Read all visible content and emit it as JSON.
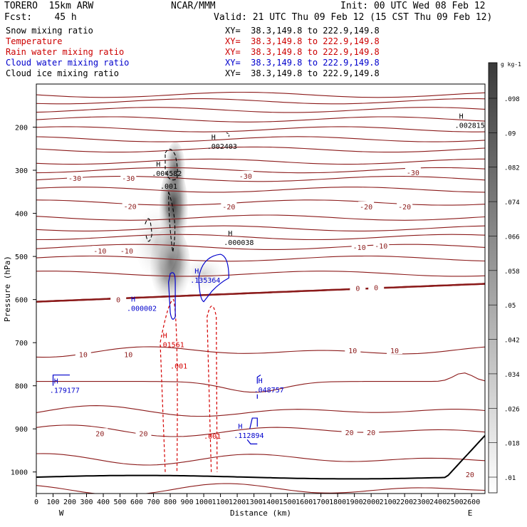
{
  "header": {
    "model": "TORERO  15km ARW",
    "center": "NCAR/MMM",
    "init": "Init: 00 UTC Wed 08 Feb 12",
    "fcst": "Fcst:    45 h",
    "valid": "Valid: 21 UTC Thu 09 Feb 12 (15 CST Thu 09 Feb 12)"
  },
  "fields": [
    {
      "name": "Snow mixing ratio",
      "xy": "XY=  38.3,149.8 to 222.9,149.8",
      "color": "#000000"
    },
    {
      "name": "Temperature",
      "xy": "XY=  38.3,149.8 to 222.9,149.8",
      "color": "#cc0000"
    },
    {
      "name": "Rain water mixing ratio",
      "xy": "XY=  38.3,149.8 to 222.9,149.8",
      "color": "#cc0000"
    },
    {
      "name": "Cloud water mixing ratio",
      "xy": "XY=  38.3,149.8 to 222.9,149.8",
      "color": "#0000cc"
    },
    {
      "name": "Cloud ice mixing ratio",
      "xy": "XY=  38.3,149.8 to 222.9,149.8",
      "color": "#000000"
    }
  ],
  "colors": {
    "isotherm": "#8b1a1a",
    "rain": "#d40000",
    "cloud": "#0000cc",
    "ice": "#000000"
  },
  "chart_data": {
    "type": "cross-section contour",
    "xlabel": "Distance (km)",
    "ylabel": "Pressure (hPa)",
    "xlim": [
      0,
      2680
    ],
    "ylim": [
      1050,
      100
    ],
    "xticks": [
      0,
      100,
      200,
      300,
      400,
      500,
      600,
      700,
      800,
      900,
      1000,
      1100,
      1200,
      1300,
      1400,
      1500,
      1600,
      1700,
      1800,
      1900,
      2000,
      2100,
      2200,
      2300,
      2400,
      2500,
      2600
    ],
    "yticks": [
      200,
      300,
      400,
      500,
      600,
      700,
      800,
      900,
      1000
    ],
    "west_label": "W",
    "east_label": "E",
    "colorbar": {
      "unit": "g kg-1",
      "labels": [
        ".098",
        ".09",
        ".082",
        ".074",
        ".066",
        ".058",
        ".05",
        ".042",
        ".034",
        ".026",
        ".018",
        ".01"
      ]
    },
    "isotherm_labels": [
      {
        "x": 230,
        "p": 318,
        "text": "-30"
      },
      {
        "x": 550,
        "p": 318,
        "text": "-30"
      },
      {
        "x": 1250,
        "p": 313,
        "text": "-30"
      },
      {
        "x": 2250,
        "p": 305,
        "text": "-30"
      },
      {
        "x": 560,
        "p": 383,
        "text": "-20"
      },
      {
        "x": 1150,
        "p": 384,
        "text": "-20"
      },
      {
        "x": 1970,
        "p": 384,
        "text": "-20"
      },
      {
        "x": 2200,
        "p": 384,
        "text": "-20"
      },
      {
        "x": 380,
        "p": 487,
        "text": "-10"
      },
      {
        "x": 540,
        "p": 487,
        "text": "-10"
      },
      {
        "x": 1930,
        "p": 478,
        "text": "-10"
      },
      {
        "x": 2060,
        "p": 475,
        "text": "-10"
      },
      {
        "x": 490,
        "p": 600,
        "text": "0"
      },
      {
        "x": 1920,
        "p": 573,
        "text": "0"
      },
      {
        "x": 2030,
        "p": 572,
        "text": "0"
      },
      {
        "x": 280,
        "p": 727,
        "text": "10"
      },
      {
        "x": 550,
        "p": 727,
        "text": "10"
      },
      {
        "x": 1890,
        "p": 718,
        "text": "10"
      },
      {
        "x": 2140,
        "p": 718,
        "text": "10"
      },
      {
        "x": 380,
        "p": 910,
        "text": "20"
      },
      {
        "x": 640,
        "p": 910,
        "text": "20"
      },
      {
        "x": 1870,
        "p": 908,
        "text": "20"
      },
      {
        "x": 2000,
        "p": 908,
        "text": "20"
      },
      {
        "x": 2590,
        "p": 1005,
        "text": "20"
      }
    ],
    "maxima": [
      {
        "x": 2500,
        "p": 193,
        "value": ".002815",
        "color": "#000000"
      },
      {
        "x": 1020,
        "p": 242,
        "value": ".002403",
        "color": "#000000"
      },
      {
        "x": 690,
        "p": 305,
        "value": ".004582",
        "color": "#000000"
      },
      {
        "x": 1120,
        "p": 465,
        "value": ".000038",
        "color": "#000000"
      },
      {
        "x": 920,
        "p": 553,
        "value": ".135364",
        "color": "#0000cc"
      },
      {
        "x": 540,
        "p": 618,
        "value": ".000002",
        "color": "#0000cc"
      },
      {
        "x": 730,
        "p": 702,
        "value": ".01561",
        "color": "#d40000"
      },
      {
        "x": 80,
        "p": 808,
        "value": ".179177",
        "color": "#0000cc"
      },
      {
        "x": 1300,
        "p": 807,
        "value": ".048757",
        "color": "#0000cc"
      },
      {
        "x": 1180,
        "p": 913,
        "value": ".112894",
        "color": "#0000cc"
      }
    ],
    "contour_labels": [
      {
        "x": 740,
        "p": 343,
        "text": ".001",
        "color": "#000000"
      },
      {
        "x": 800,
        "p": 760,
        "text": ".001",
        "color": "#d40000"
      },
      {
        "x": 1000,
        "p": 923,
        "text": ".001",
        "color": "#d40000"
      }
    ]
  }
}
